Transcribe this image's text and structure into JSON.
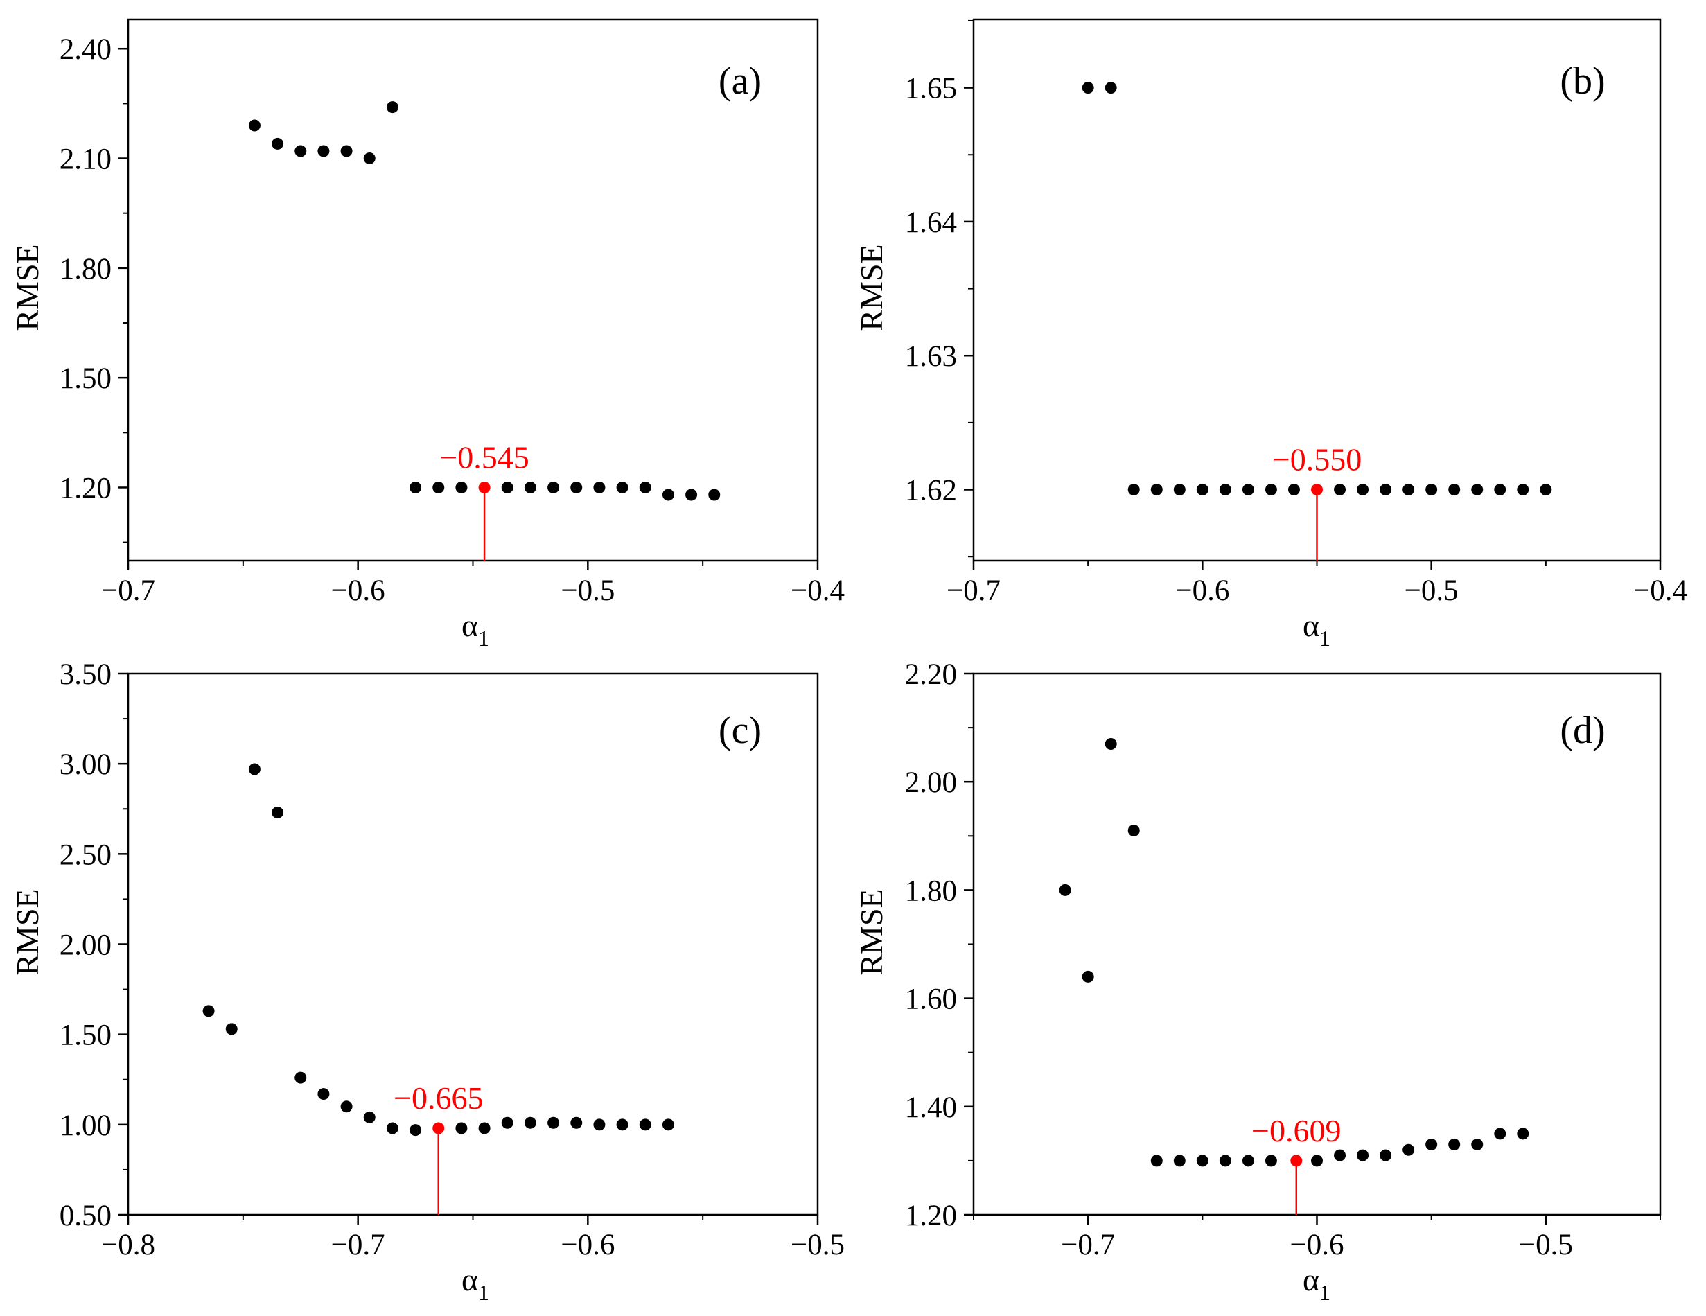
{
  "figure": {
    "background": "#ffffff",
    "point_color": "#000000",
    "highlight_color": "#ff0000"
  },
  "chart_data": [
    {
      "type": "scatter",
      "panel_label": "(a)",
      "xlabel": "α",
      "xlabel_sub": "1",
      "ylabel": "RMSE",
      "xlim": [
        -0.7,
        -0.4
      ],
      "ylim": [
        1.0,
        2.48
      ],
      "xticks": [
        -0.7,
        -0.6,
        -0.5,
        -0.4
      ],
      "xtick_labels": [
        "−0.7",
        "−0.6",
        "−0.5",
        "−0.4"
      ],
      "yticks": [
        1.2,
        1.5,
        1.8,
        2.1,
        2.4
      ],
      "ytick_labels": [
        "1.20",
        "1.50",
        "1.80",
        "2.10",
        "2.40"
      ],
      "x": [
        -0.645,
        -0.635,
        -0.625,
        -0.615,
        -0.605,
        -0.595,
        -0.585,
        -0.575,
        -0.565,
        -0.555,
        -0.545,
        -0.535,
        -0.525,
        -0.515,
        -0.505,
        -0.495,
        -0.485,
        -0.475,
        -0.465,
        -0.455,
        -0.445
      ],
      "y": [
        2.19,
        2.14,
        2.12,
        2.12,
        2.12,
        2.1,
        2.24,
        1.2,
        1.2,
        1.2,
        1.2,
        1.2,
        1.2,
        1.2,
        1.2,
        1.2,
        1.2,
        1.2,
        1.18,
        1.18,
        1.18
      ],
      "highlight": {
        "x": -0.545,
        "y": 1.2,
        "label": "−0.545"
      }
    },
    {
      "type": "scatter",
      "panel_label": "(b)",
      "xlabel": "α",
      "xlabel_sub": "1",
      "ylabel": "RMSE",
      "xlim": [
        -0.7,
        -0.4
      ],
      "ylim": [
        1.6147,
        1.6551
      ],
      "xticks": [
        -0.7,
        -0.6,
        -0.5,
        -0.4
      ],
      "xtick_labels": [
        "−0.7",
        "−0.6",
        "−0.5",
        "−0.4"
      ],
      "yticks": [
        1.62,
        1.63,
        1.64,
        1.65
      ],
      "ytick_labels": [
        "1.62",
        "1.63",
        "1.64",
        "1.65"
      ],
      "x": [
        -0.65,
        -0.64,
        -0.63,
        -0.62,
        -0.61,
        -0.6,
        -0.59,
        -0.58,
        -0.57,
        -0.56,
        -0.55,
        -0.54,
        -0.53,
        -0.52,
        -0.51,
        -0.5,
        -0.49,
        -0.48,
        -0.47,
        -0.46,
        -0.45
      ],
      "y": [
        1.65,
        1.65,
        1.62,
        1.62,
        1.62,
        1.62,
        1.62,
        1.62,
        1.62,
        1.62,
        1.62,
        1.62,
        1.62,
        1.62,
        1.62,
        1.62,
        1.62,
        1.62,
        1.62,
        1.62,
        1.62
      ],
      "highlight": {
        "x": -0.55,
        "y": 1.62,
        "label": "−0.550"
      }
    },
    {
      "type": "scatter",
      "panel_label": "(c)",
      "xlabel": "α",
      "xlabel_sub": "1",
      "ylabel": "RMSE",
      "xlim": [
        -0.8,
        -0.5
      ],
      "ylim": [
        0.5,
        3.5
      ],
      "xticks": [
        -0.8,
        -0.7,
        -0.6,
        -0.5
      ],
      "xtick_labels": [
        "−0.8",
        "−0.7",
        "−0.6",
        "−0.5"
      ],
      "yticks": [
        0.5,
        1.0,
        1.5,
        2.0,
        2.5,
        3.0,
        3.5
      ],
      "ytick_labels": [
        "0.50",
        "1.00",
        "1.50",
        "2.00",
        "2.50",
        "3.00",
        "3.50"
      ],
      "x": [
        -0.765,
        -0.755,
        -0.745,
        -0.735,
        -0.725,
        -0.715,
        -0.705,
        -0.695,
        -0.685,
        -0.675,
        -0.665,
        -0.655,
        -0.645,
        -0.635,
        -0.625,
        -0.615,
        -0.605,
        -0.595,
        -0.585,
        -0.575,
        -0.565
      ],
      "y": [
        1.63,
        1.53,
        2.97,
        2.73,
        1.26,
        1.17,
        1.1,
        1.04,
        0.98,
        0.97,
        0.98,
        0.98,
        0.98,
        1.01,
        1.01,
        1.01,
        1.01,
        1.0,
        1.0,
        1.0,
        1.0
      ],
      "highlight": {
        "x": -0.665,
        "y": 0.98,
        "label": "−0.665"
      }
    },
    {
      "type": "scatter",
      "panel_label": "(d)",
      "xlabel": "α",
      "xlabel_sub": "1",
      "ylabel": "RMSE",
      "xlim": [
        -0.75,
        -0.45
      ],
      "ylim": [
        1.2,
        2.2
      ],
      "xticks": [
        -0.7,
        -0.6,
        -0.5
      ],
      "xtick_labels": [
        "−0.7",
        "−0.6",
        "−0.5"
      ],
      "yticks": [
        1.2,
        1.4,
        1.6,
        1.8,
        2.0,
        2.2
      ],
      "ytick_labels": [
        "1.20",
        "1.40",
        "1.60",
        "1.80",
        "2.00",
        "2.20"
      ],
      "x": [
        -0.71,
        -0.7,
        -0.69,
        -0.68,
        -0.67,
        -0.66,
        -0.65,
        -0.64,
        -0.63,
        -0.62,
        -0.609,
        -0.6,
        -0.59,
        -0.58,
        -0.57,
        -0.56,
        -0.55,
        -0.54,
        -0.53,
        -0.52,
        -0.51
      ],
      "y": [
        1.8,
        1.64,
        2.07,
        1.91,
        1.3,
        1.3,
        1.3,
        1.3,
        1.3,
        1.3,
        1.3,
        1.3,
        1.31,
        1.31,
        1.31,
        1.32,
        1.33,
        1.33,
        1.33,
        1.35,
        1.35
      ],
      "highlight": {
        "x": -0.609,
        "y": 1.3,
        "label": "−0.609"
      }
    }
  ]
}
